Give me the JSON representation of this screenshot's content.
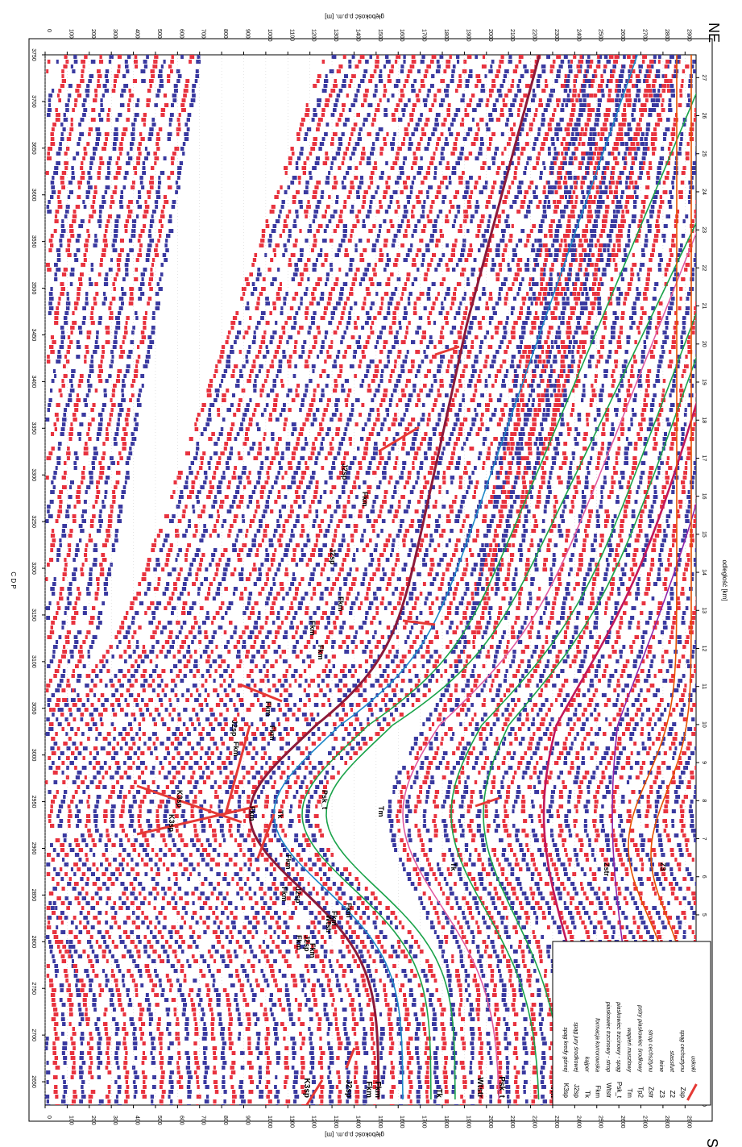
{
  "axes": {
    "cdp_label": "C D P",
    "depth_label": "głębokość p.p.m. [m]",
    "distance_label": "odległość [km]",
    "cdp_ticks": [
      2650,
      2700,
      2750,
      2800,
      2850,
      2900,
      2950,
      3000,
      3050,
      3100,
      3150,
      3200,
      3250,
      3300,
      3350,
      3400,
      3450,
      3500,
      3550,
      3600,
      3650,
      3700,
      3750
    ],
    "depth_ticks": [
      0,
      100,
      200,
      300,
      400,
      500,
      600,
      700,
      800,
      900,
      1000,
      1100,
      1200,
      1300,
      1400,
      1500,
      1600,
      1700,
      1800,
      1900,
      2000,
      2100,
      2200,
      2300,
      2400,
      2500,
      2600,
      2700,
      2800,
      2900
    ],
    "km_ticks": [
      0,
      1,
      2,
      3,
      4,
      5,
      6,
      7,
      8,
      9,
      10,
      11,
      12,
      13,
      14,
      15,
      16,
      17,
      18,
      19,
      20,
      21,
      22,
      23,
      24,
      25,
      26,
      27
    ],
    "sw_label": "SW",
    "ne_label": "NE"
  },
  "legend": [
    {
      "code": "K3sp",
      "desc": "spąg kredy górnej",
      "color": "#2e7d32"
    },
    {
      "code": "J2sp",
      "desc": "spąg jury środkowej",
      "color": "#1e88c8"
    },
    {
      "code": "Tk",
      "desc": "kajper",
      "color": "#e05aa0"
    },
    {
      "code": "Fkm",
      "desc": "formacja korrorowska",
      "color": "#1aa34a"
    },
    {
      "code": "Wtstr",
      "desc": "piaskowiec trzcinowy - strop",
      "color": "#1aa34a"
    },
    {
      "code": "Psk_t",
      "desc": "piaskowiec trzcinowy - spąg",
      "color": "#1aa34a"
    },
    {
      "code": "Tm",
      "desc": "wapień muszlowy",
      "color": "#c2185b"
    },
    {
      "code": "Tp2",
      "desc": "pstry piaskowiec środkowy",
      "color": "#8e24aa"
    },
    {
      "code": "Zstr",
      "desc": "strop cechsztynu",
      "color": "#e65100"
    },
    {
      "code": "Z3",
      "desc": "leine",
      "color": "#e65100"
    },
    {
      "code": "Z2",
      "desc": "stassfurt",
      "color": "#e65100"
    },
    {
      "code": "Zsp",
      "desc": "spąg cechsztynu",
      "color": "#e65100"
    },
    {
      "code": "",
      "desc": "uskoki",
      "color": "#e53935"
    }
  ],
  "left_labels": [
    "K3sp",
    "J2sp",
    "Fkm",
    "Fkm",
    "Tk",
    "Wtstr",
    "Psk_t",
    "Tm",
    "Tp2",
    "Zstr"
  ],
  "horizon_labels": [
    {
      "text": "J2sp",
      "name": "label-j2sp-1"
    },
    {
      "text": "J2sp",
      "name": "label-j2sp-2"
    },
    {
      "text": "J2sp",
      "name": "label-j2sp-3"
    },
    {
      "text": "J2sp",
      "name": "label-j2sp-4"
    },
    {
      "text": "J2sp",
      "name": "label-j2sp-5"
    },
    {
      "text": "Fkm",
      "name": "label-fkm-1"
    },
    {
      "text": "Fkm",
      "name": "label-fkm-2"
    },
    {
      "text": "Fkm",
      "name": "label-fkm-3"
    },
    {
      "text": "Fkm",
      "name": "label-fkm-4"
    },
    {
      "text": "Fkm",
      "name": "label-fkm-5"
    },
    {
      "text": "Fkm",
      "name": "label-fkm-6"
    },
    {
      "text": "Fkm",
      "name": "label-fkm-7"
    },
    {
      "text": "Fkm",
      "name": "label-fkm-8"
    },
    {
      "text": "Fkm",
      "name": "label-fkm-9"
    },
    {
      "text": "Fkm",
      "name": "label-fkm-10"
    },
    {
      "text": "Fkm",
      "name": "label-fkm-11"
    },
    {
      "text": "Fkm",
      "name": "label-fkm-12"
    },
    {
      "text": "Fkm",
      "name": "label-fkm-13"
    },
    {
      "text": "Fkm",
      "name": "label-fkm-14"
    },
    {
      "text": "K3sp",
      "name": "label-k3sp-1"
    },
    {
      "text": "K3sp",
      "name": "label-k3sp-2"
    },
    {
      "text": "Tk",
      "name": "label-tk-1"
    },
    {
      "text": "Tk",
      "name": "label-tk-2"
    },
    {
      "text": "Wtstr",
      "name": "label-wtstr-1"
    },
    {
      "text": "Psk_t",
      "name": "label-psk-t-1"
    },
    {
      "text": "Psk_t",
      "name": "label-psk-t-2"
    },
    {
      "text": "Tm",
      "name": "label-tm-1"
    },
    {
      "text": "Zstr",
      "name": "label-zstr-1"
    },
    {
      "text": "Z3",
      "name": "label-z3-1"
    },
    {
      "text": "Z3",
      "name": "label-z3-2"
    }
  ]
}
